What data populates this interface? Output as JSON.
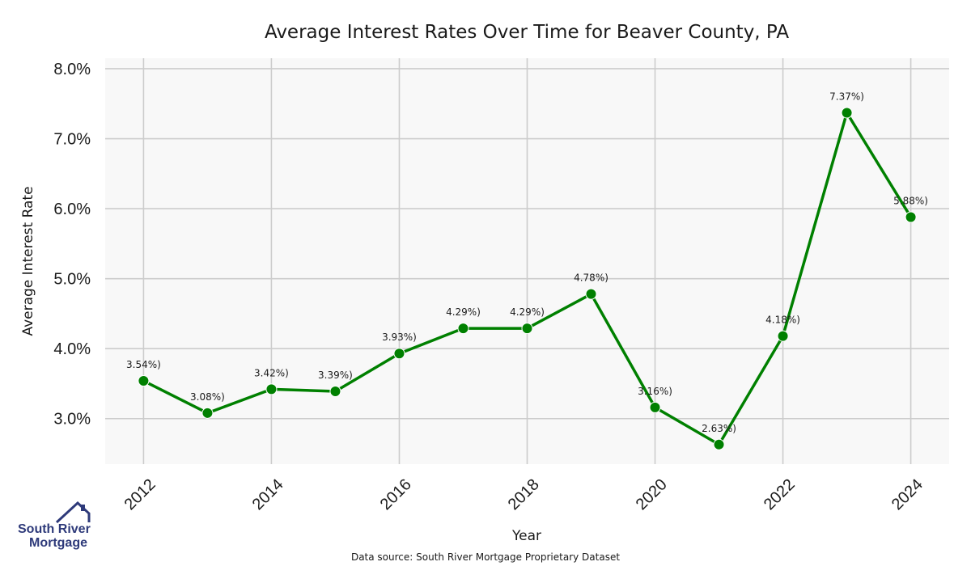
{
  "chart_data": {
    "type": "line",
    "title": "Average Interest Rates Over Time for Beaver County, PA",
    "xlabel": "Year",
    "ylabel": "Average Interest Rate",
    "x": [
      2012,
      2013,
      2014,
      2015,
      2016,
      2017,
      2018,
      2019,
      2020,
      2021,
      2022,
      2023,
      2024
    ],
    "series": [
      {
        "values": [
          3.54,
          3.08,
          3.42,
          3.39,
          3.93,
          4.29,
          4.29,
          4.78,
          3.16,
          2.63,
          4.18,
          7.37,
          5.88
        ],
        "labels": [
          "3.54%)",
          "3.08%)",
          "3.42%)",
          "3.39%)",
          "3.93%)",
          "4.29%)",
          "4.29%)",
          "4.78%)",
          "3.16%)",
          "2.63%)",
          "4.18%)",
          "7.37%)",
          "5.88%)"
        ],
        "color": "#008000"
      }
    ],
    "xticks": [
      2012,
      2014,
      2016,
      2018,
      2020,
      2022,
      2024
    ],
    "yticks": [
      3.0,
      4.0,
      5.0,
      6.0,
      7.0,
      8.0
    ],
    "ytick_labels": [
      "3.0%",
      "4.0%",
      "5.0%",
      "6.0%",
      "7.0%",
      "8.0%"
    ],
    "ylim": [
      2.35,
      8.15
    ],
    "xlim": [
      2011.4,
      2024.6
    ],
    "grid": true,
    "plot_background": "#f8f8f8",
    "grid_color": "#cccccc"
  },
  "footer": {
    "source": "Data source: South River Mortgage Proprietary Dataset"
  },
  "logo": {
    "line1": "South River",
    "line2": "Mortgage",
    "color": "#2e3a7a"
  }
}
